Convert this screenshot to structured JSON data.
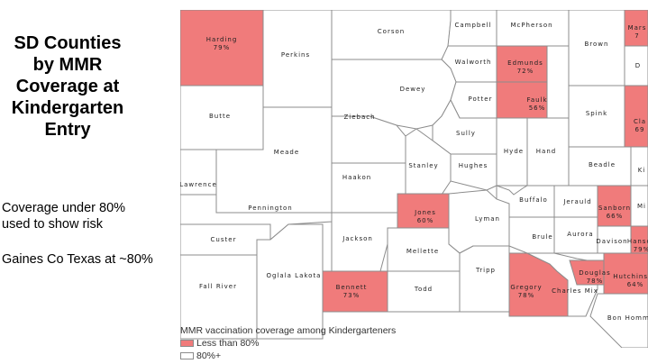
{
  "title": {
    "lines": [
      "SD Counties",
      "by MMR",
      "Coverage at",
      "Kindergarten",
      "Entry"
    ]
  },
  "notes": {
    "risk_line1": "Coverage under 80%",
    "risk_line2": "used to show risk",
    "gaines": "Gaines Co Texas at ~80%"
  },
  "legend": {
    "title": "MMR vaccination coverage among Kindergarteners",
    "low_label": "Less than 80%",
    "ok_label": "80%+",
    "low_color": "#f07b7b",
    "ok_color": "#ffffff"
  },
  "counties": [
    {
      "name": "Harding",
      "coverage": "79%",
      "category": "low"
    },
    {
      "name": "Perkins",
      "category": "ok"
    },
    {
      "name": "Corson",
      "category": "ok"
    },
    {
      "name": "Campbell",
      "category": "ok"
    },
    {
      "name": "McPherson",
      "category": "ok"
    },
    {
      "name": "Brown",
      "category": "ok"
    },
    {
      "name": "Mars",
      "coverage": "7",
      "category": "low"
    },
    {
      "name": "D",
      "category": "ok"
    },
    {
      "name": "Walworth",
      "category": "ok"
    },
    {
      "name": "Edmunds",
      "coverage": "72%",
      "category": "low"
    },
    {
      "name": "Dewey",
      "category": "ok"
    },
    {
      "name": "Butte",
      "category": "ok"
    },
    {
      "name": "Ziebach",
      "category": "ok"
    },
    {
      "name": "Potter",
      "category": "ok"
    },
    {
      "name": "Faulk",
      "coverage": "56%",
      "category": "low"
    },
    {
      "name": "Spink",
      "category": "ok"
    },
    {
      "name": "Cla",
      "coverage": "69",
      "category": "low"
    },
    {
      "name": "Meade",
      "category": "ok"
    },
    {
      "name": "Sully",
      "category": "ok"
    },
    {
      "name": "Hyde",
      "category": "ok"
    },
    {
      "name": "Hand",
      "category": "ok"
    },
    {
      "name": "Stanley",
      "category": "ok"
    },
    {
      "name": "Hughes",
      "category": "ok"
    },
    {
      "name": "Beadle",
      "category": "ok"
    },
    {
      "name": "Ki",
      "category": "ok"
    },
    {
      "name": "Lawrence",
      "category": "ok"
    },
    {
      "name": "Haakon",
      "category": "ok"
    },
    {
      "name": "Buffalo",
      "category": "ok"
    },
    {
      "name": "Jerauld",
      "category": "ok"
    },
    {
      "name": "Sanborn",
      "coverage": "66%",
      "category": "low"
    },
    {
      "name": "Mi",
      "category": "ok"
    },
    {
      "name": "Pennington",
      "category": "ok"
    },
    {
      "name": "Jones",
      "coverage": "60%",
      "category": "low"
    },
    {
      "name": "Lyman",
      "category": "ok"
    },
    {
      "name": "Custer",
      "category": "ok"
    },
    {
      "name": "Jackson",
      "category": "ok"
    },
    {
      "name": "Brule",
      "category": "ok"
    },
    {
      "name": "Aurora",
      "category": "ok"
    },
    {
      "name": "Davison",
      "category": "ok"
    },
    {
      "name": "Hanson",
      "coverage": "79%",
      "category": "low"
    },
    {
      "name": "Mellette",
      "category": "ok"
    },
    {
      "name": "Tripp",
      "category": "ok"
    },
    {
      "name": "Fall River",
      "category": "ok"
    },
    {
      "name": "Oglala Lakota",
      "category": "ok"
    },
    {
      "name": "Bennett",
      "coverage": "73%",
      "category": "low"
    },
    {
      "name": "Todd",
      "category": "ok"
    },
    {
      "name": "Gregory",
      "coverage": "78%",
      "category": "low"
    },
    {
      "name": "Charles Mix",
      "category": "ok"
    },
    {
      "name": "Douglas",
      "coverage": "78%",
      "category": "low"
    },
    {
      "name": "Hutchinson",
      "coverage": "64%",
      "category": "low"
    },
    {
      "name": "Bon Homme",
      "category": "ok"
    }
  ]
}
